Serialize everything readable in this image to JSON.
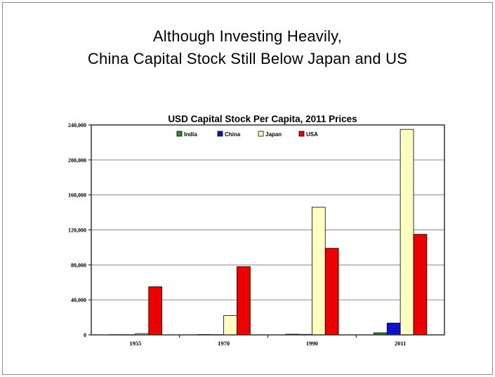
{
  "slide": {
    "title_line1": "Although Investing Heavily,",
    "title_line2": "China Capital Stock Still Below Japan and US"
  },
  "chart_data": {
    "type": "bar",
    "title": "USD Capital Stock Per Capita, 2011 Prices",
    "xlabel": "",
    "ylabel": "",
    "categories": [
      "1955",
      "1970",
      "1990",
      "2011"
    ],
    "series": [
      {
        "name": "India",
        "color": "#2e8b2e",
        "values": [
          300,
          500,
          800,
          2400
        ]
      },
      {
        "name": "China",
        "color": "#1010d0",
        "values": [
          200,
          300,
          600,
          13500
        ]
      },
      {
        "name": "Japan",
        "color": "#ffffc0",
        "values": [
          1500,
          22000,
          146000,
          235000
        ]
      },
      {
        "name": "USA",
        "color": "#ee0000",
        "values": [
          55000,
          78000,
          99000,
          115000
        ]
      }
    ],
    "ylim": [
      0,
      240000
    ],
    "yticks": [
      0,
      40000,
      80000,
      120000,
      160000,
      200000,
      240000
    ],
    "ytick_labels": [
      "0",
      "40,000",
      "80,000",
      "120,000",
      "160,000",
      "200,000",
      "240,000"
    ],
    "grid": true,
    "legend_position": "top-center"
  }
}
